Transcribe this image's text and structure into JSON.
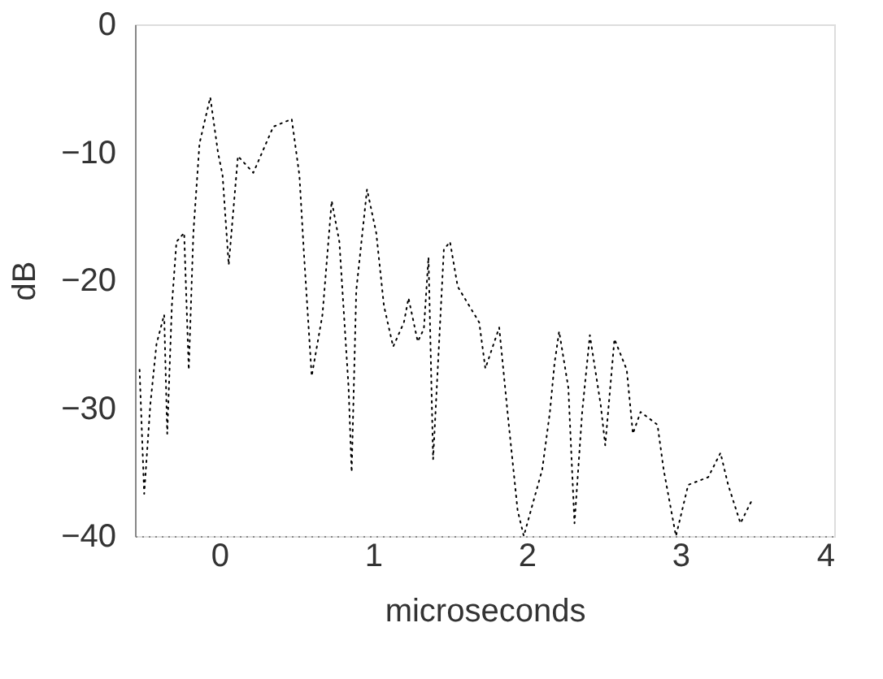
{
  "chart_data": {
    "type": "line",
    "xlabel": "microseconds",
    "ylabel": "dB",
    "xlim": [
      -0.55,
      4
    ],
    "ylim": [
      -40,
      0
    ],
    "xticks": [
      0,
      1,
      2,
      3,
      4
    ],
    "yticks": [
      0,
      -10,
      -20,
      -30,
      -40
    ],
    "grid": false,
    "marker": "none",
    "line_style": "dotted",
    "series": [
      {
        "color": "#000000",
        "x": [
          -0.52,
          -0.49,
          -0.45,
          -0.41,
          -0.36,
          -0.34,
          -0.31,
          -0.28,
          -0.23,
          -0.2,
          -0.17,
          -0.13,
          -0.06,
          -0.01,
          0.02,
          0.06,
          0.12,
          0.22,
          0.35,
          0.47,
          0.52,
          0.55,
          0.6,
          0.67,
          0.73,
          0.78,
          0.84,
          0.86,
          0.89,
          0.96,
          1.02,
          1.07,
          1.13,
          1.2,
          1.23,
          1.29,
          1.33,
          1.36,
          1.39,
          1.46,
          1.5,
          1.55,
          1.69,
          1.73,
          1.82,
          1.88,
          1.94,
          1.98,
          2.1,
          2.15,
          2.18,
          2.21,
          2.27,
          2.31,
          2.36,
          2.41,
          2.48,
          2.51,
          2.57,
          2.65,
          2.69,
          2.74,
          2.85,
          2.89,
          2.97,
          3.05,
          3.18,
          3.26,
          3.31,
          3.39,
          3.46
        ],
        "values": [
          -27,
          -36.7,
          -29.7,
          -25,
          -22.7,
          -32,
          -22,
          -17,
          -16.3,
          -27,
          -16.3,
          -9.3,
          -5.7,
          -10,
          -11.8,
          -18.8,
          -10.3,
          -11.6,
          -8,
          -7.4,
          -11.8,
          -18,
          -27.5,
          -22.7,
          -13.8,
          -17,
          -28.4,
          -35,
          -20.8,
          -12.9,
          -16.3,
          -22,
          -25.2,
          -23.3,
          -21.4,
          -24.8,
          -23.8,
          -18.2,
          -34,
          -17.6,
          -17,
          -20.5,
          -23.3,
          -26.9,
          -23.7,
          -31,
          -38,
          -40,
          -34.8,
          -30.3,
          -26.5,
          -24,
          -28.4,
          -39,
          -30.3,
          -24.3,
          -29.7,
          -32.9,
          -24.6,
          -27,
          -32,
          -30.3,
          -31.3,
          -34.8,
          -40,
          -36,
          -35.4,
          -33.5,
          -36,
          -39,
          -37.3
        ]
      }
    ]
  }
}
